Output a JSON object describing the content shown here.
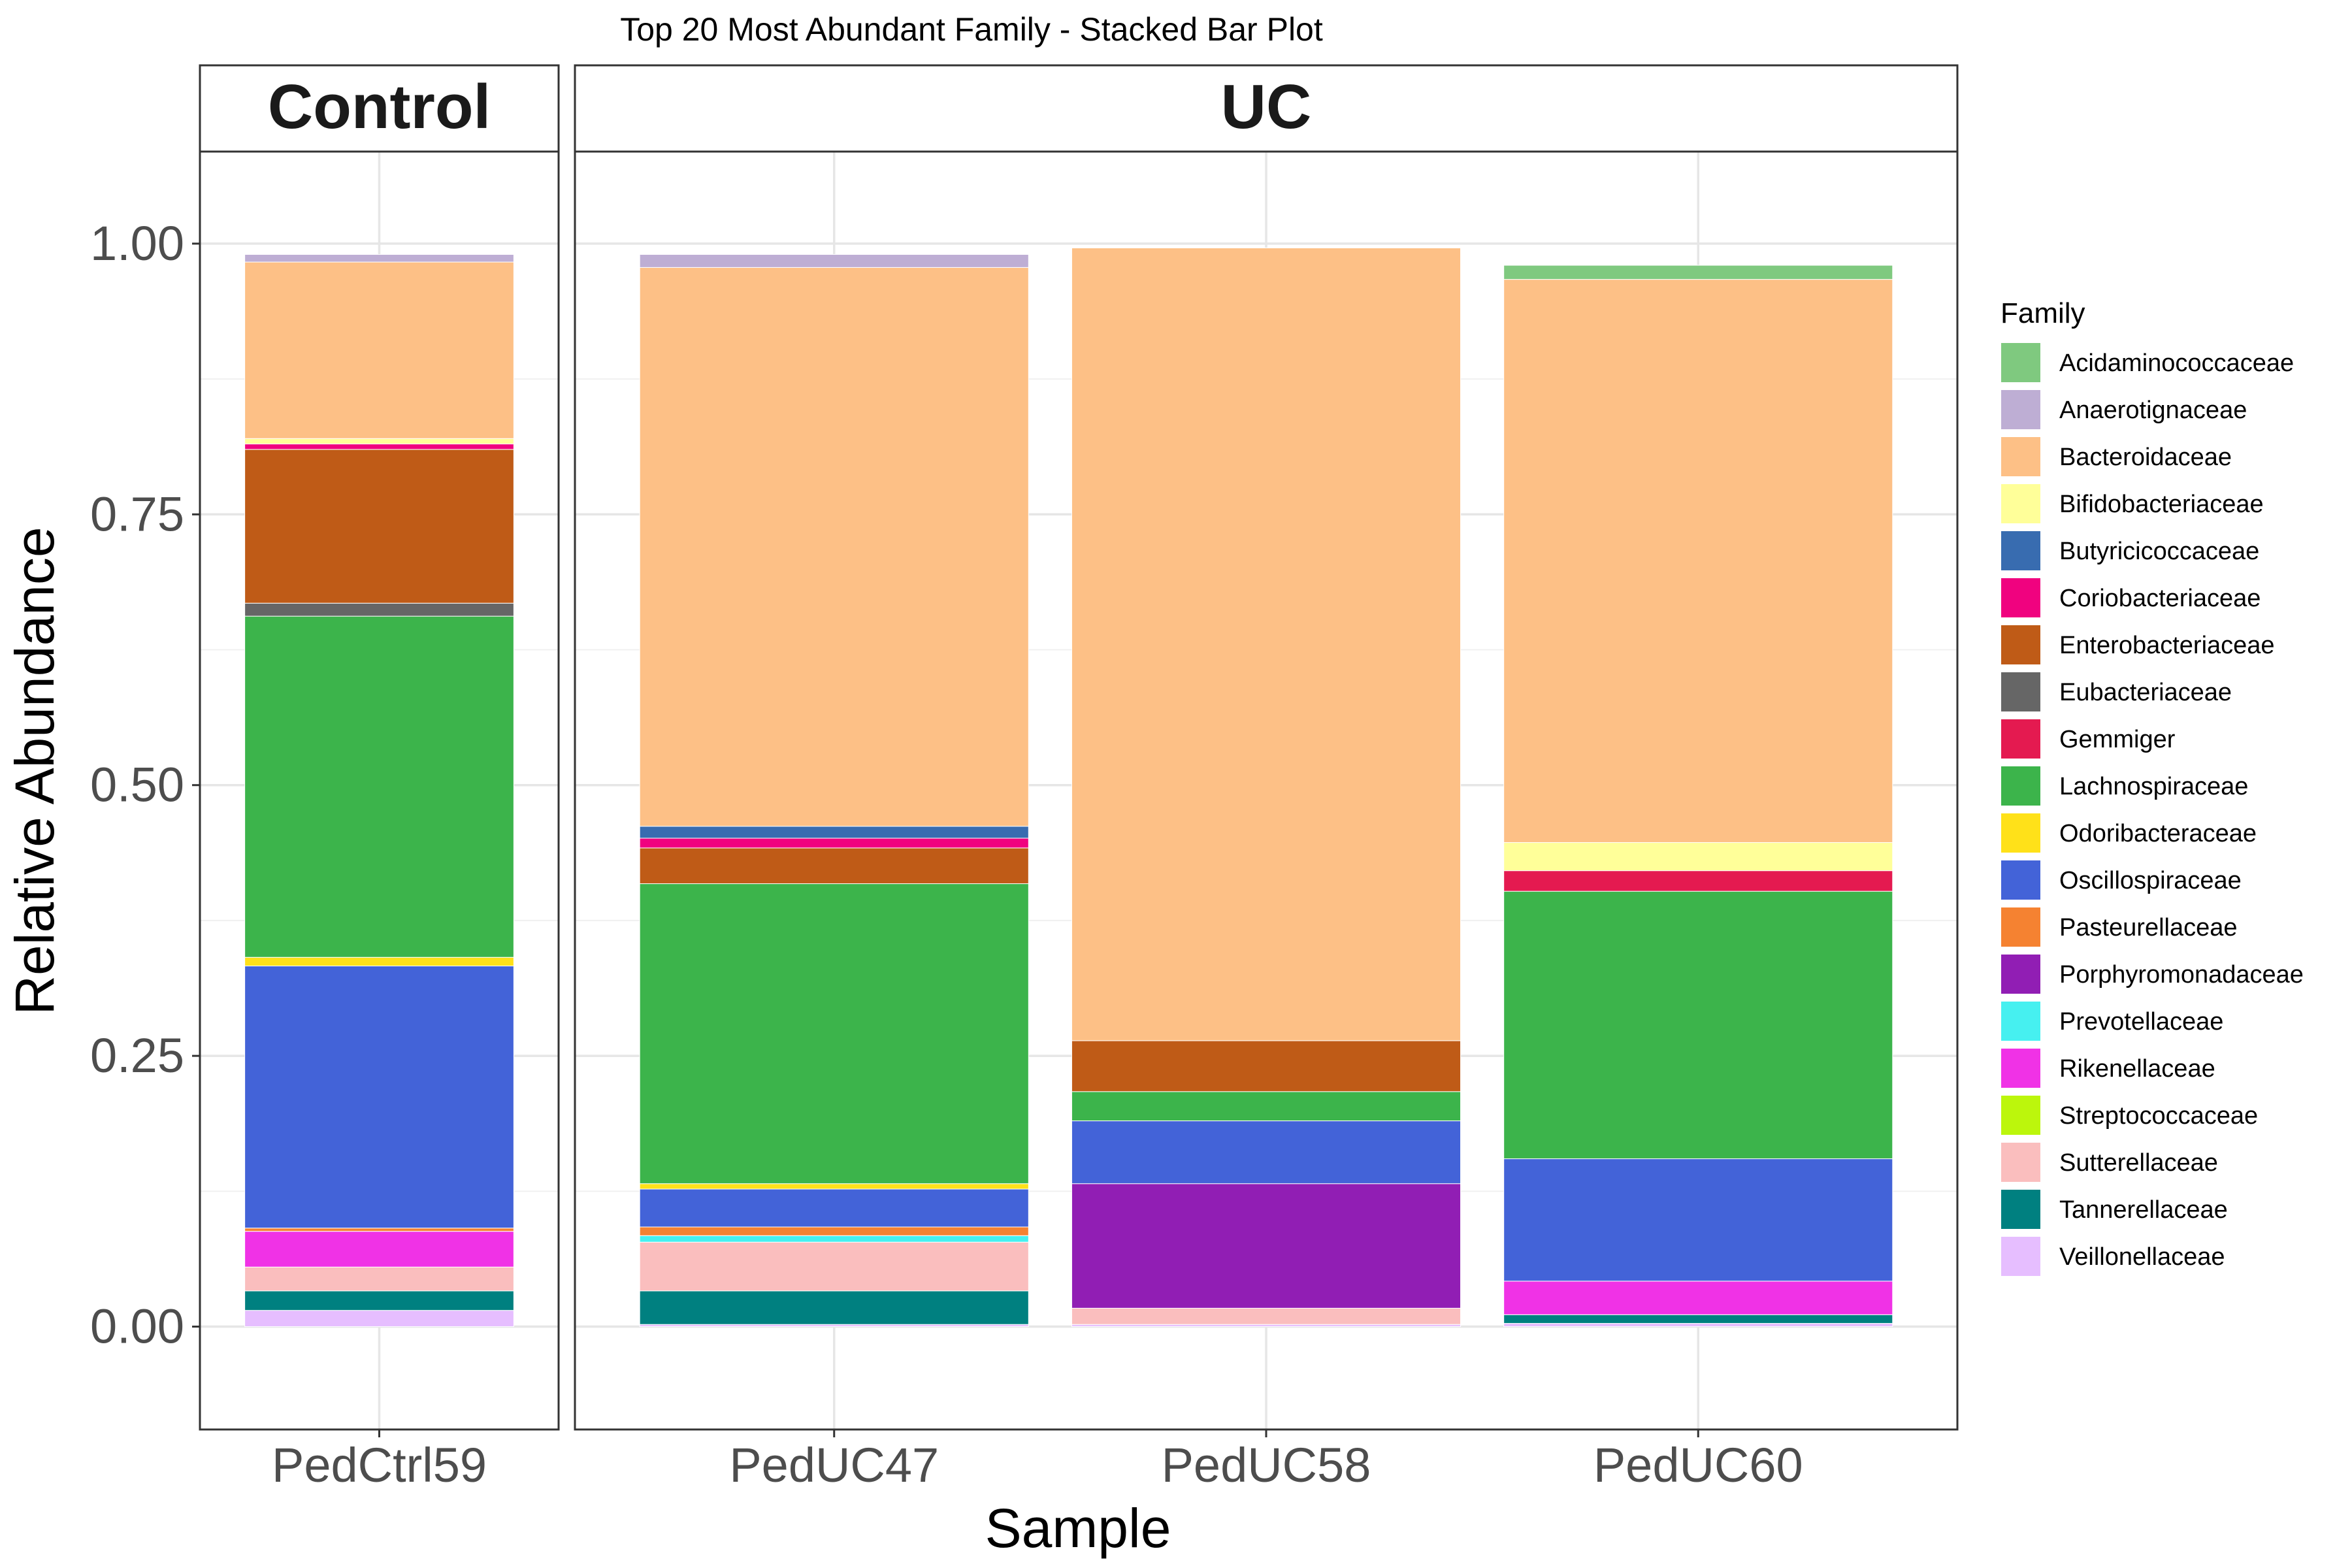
{
  "chart_data": {
    "type": "bar",
    "stacked": true,
    "title": "Top 20 Most Abundant Family - Stacked Bar Plot",
    "xlabel": "Sample",
    "ylabel": "Relative Abundance",
    "ylim": [
      -0.095,
      1.085
    ],
    "yticks": [
      0,
      0.25,
      0.5,
      0.75,
      1
    ],
    "ytick_labels": [
      "0.00",
      "0.25",
      "0.50",
      "0.75",
      "1.00"
    ],
    "grid": true,
    "legend_title": "Family",
    "legend_position": "right",
    "facets": [
      {
        "label": "Control",
        "samples": [
          "PedCtrl59"
        ]
      },
      {
        "label": "UC",
        "samples": [
          "PedUC47",
          "PedUC58",
          "PedUC60"
        ]
      }
    ],
    "families": [
      {
        "name": "Acidaminococcaceae",
        "color": "#7FC97F"
      },
      {
        "name": "Anaerotignaceae",
        "color": "#BEAED4"
      },
      {
        "name": "Bacteroidaceae",
        "color": "#FDC086"
      },
      {
        "name": "Bifidobacteriaceae",
        "color": "#FFFF99"
      },
      {
        "name": "Butyricicoccaceae",
        "color": "#386CB0"
      },
      {
        "name": "Coriobacteriaceae",
        "color": "#F0027F"
      },
      {
        "name": "Enterobacteriaceae",
        "color": "#BF5B17"
      },
      {
        "name": "Eubacteriaceae",
        "color": "#666666"
      },
      {
        "name": "Gemmiger",
        "color": "#E41A50"
      },
      {
        "name": "Lachnospiraceae",
        "color": "#3CB44B"
      },
      {
        "name": "Odoribacteraceae",
        "color": "#FFE119"
      },
      {
        "name": "Oscillospiraceae",
        "color": "#4363D8"
      },
      {
        "name": "Pasteurellaceae",
        "color": "#F58231"
      },
      {
        "name": "Porphyromonadaceae",
        "color": "#911EB4"
      },
      {
        "name": "Prevotellaceae",
        "color": "#46F0F0"
      },
      {
        "name": "Rikenellaceae",
        "color": "#F032E6"
      },
      {
        "name": "Streptococcaceae",
        "color": "#BCF60C"
      },
      {
        "name": "Sutterellaceae",
        "color": "#FABEBE"
      },
      {
        "name": "Tannerellaceae",
        "color": "#008080"
      },
      {
        "name": "Veillonellaceae",
        "color": "#E6BEFF"
      }
    ],
    "samples": [
      {
        "name": "PedCtrl59",
        "values": {
          "Veillonellaceae": 0.015,
          "Tannerellaceae": 0.018,
          "Sutterellaceae": 0.022,
          "Pasteurellaceae": 0.003,
          "Rikenellaceae": 0.033,
          "Oscillospiraceae": 0.242,
          "Odoribacteraceae": 0.008,
          "Lachnospiraceae": 0.315,
          "Eubacteriaceae": 0.012,
          "Enterobacteriaceae": 0.142,
          "Coriobacteriaceae": 0.005,
          "Bifidobacteriaceae": 0.005,
          "Bacteroidaceae": 0.163,
          "Anaerotignaceae": 0.007
        }
      },
      {
        "name": "PedUC47",
        "values": {
          "Veillonellaceae": 0.002,
          "Tannerellaceae": 0.031,
          "Sutterellaceae": 0.045,
          "Prevotellaceae": 0.006,
          "Pasteurellaceae": 0.008,
          "Oscillospiraceae": 0.035,
          "Odoribacteraceae": 0.005,
          "Lachnospiraceae": 0.277,
          "Enterobacteriaceae": 0.033,
          "Coriobacteriaceae": 0.009,
          "Butyricicoccaceae": 0.011,
          "Bacteroidaceae": 0.516,
          "Anaerotignaceae": 0.012
        }
      },
      {
        "name": "PedUC58",
        "values": {
          "Veillonellaceae": 0.002,
          "Sutterellaceae": 0.015,
          "Porphyromonadaceae": 0.115,
          "Oscillospiraceae": 0.058,
          "Lachnospiraceae": 0.027,
          "Enterobacteriaceae": 0.047,
          "Bacteroidaceae": 0.732
        }
      },
      {
        "name": "PedUC60",
        "values": {
          "Veillonellaceae": 0.003,
          "Tannerellaceae": 0.008,
          "Rikenellaceae": 0.031,
          "Oscillospiraceae": 0.113,
          "Lachnospiraceae": 0.247,
          "Gemmiger": 0.019,
          "Bifidobacteriaceae": 0.026,
          "Bacteroidaceae": 0.52,
          "Acidaminococcaceae": 0.013
        }
      }
    ]
  }
}
